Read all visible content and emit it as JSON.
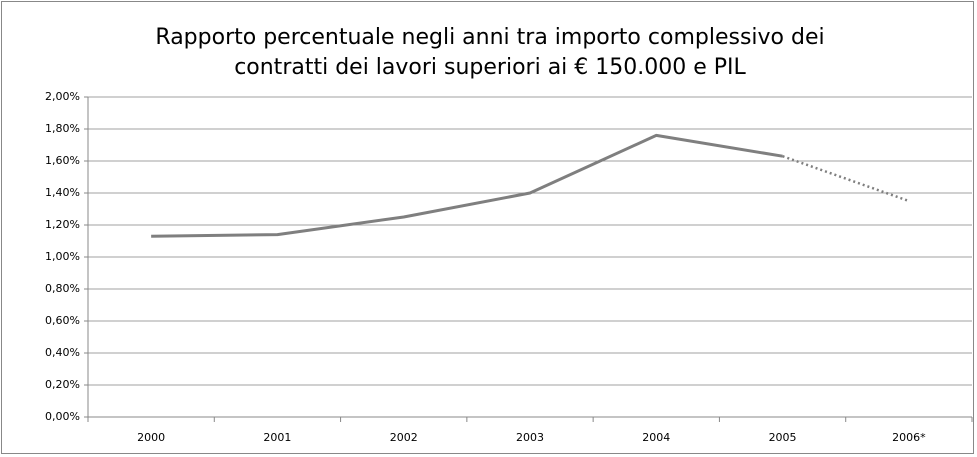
{
  "chart_data": {
    "type": "line",
    "title": "Rapporto percentuale negli anni tra importo complessivo dei",
    "subtitle": "contratti dei lavori superiori ai € 150.000 e PIL",
    "categories": [
      "2000",
      "2001",
      "2002",
      "2003",
      "2004",
      "2005",
      "2006*"
    ],
    "values": [
      1.13,
      1.14,
      1.25,
      1.4,
      1.76,
      1.63,
      1.35
    ],
    "color": "#7f7f7f",
    "dashed_last_segment": true,
    "ylim": [
      0,
      2
    ],
    "yticks": [
      {
        "value": 0,
        "label": "0,00%"
      },
      {
        "value": 0.2,
        "label": "0,20%"
      },
      {
        "value": 0.4,
        "label": "0,40%"
      },
      {
        "value": 0.6,
        "label": "0,60%"
      },
      {
        "value": 0.8,
        "label": "0,80%"
      },
      {
        "value": 1,
        "label": "1,00%"
      },
      {
        "value": 1.2,
        "label": "1,20%"
      },
      {
        "value": 1.4,
        "label": "1,40%"
      },
      {
        "value": 1.6,
        "label": "1,60%"
      },
      {
        "value": 1.8,
        "label": "1,80%"
      },
      {
        "value": 2,
        "label": "2,00%"
      }
    ],
    "grid": true
  }
}
